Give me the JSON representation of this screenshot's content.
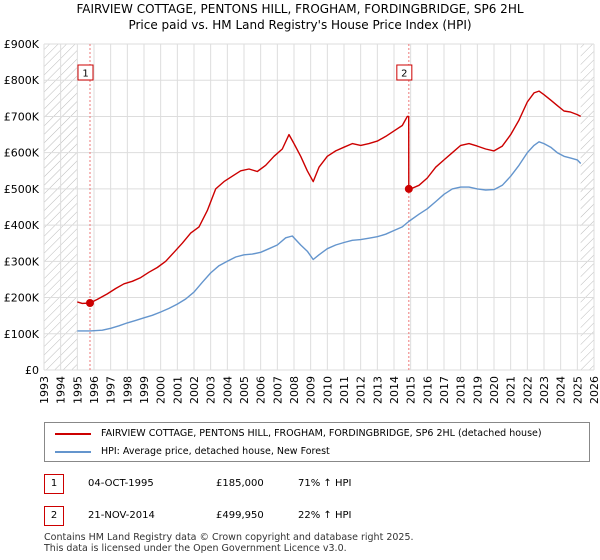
{
  "colors": {
    "property": "#cc0000",
    "hpi": "#6495cd",
    "grid": "#dddddd",
    "hatch": "#bbbbbb",
    "marker_line": "#ee7777"
  },
  "chart_data": {
    "type": "line",
    "title_line1": "FAIRVIEW COTTAGE, PENTONS HILL, FROGHAM, FORDINGBRIDGE, SP6 2HL",
    "title_line2": "Price paid vs. HM Land Registry's House Price Index (HPI)",
    "xlim": [
      1993,
      2026
    ],
    "ylim": [
      0,
      900000
    ],
    "x_ticks": [
      1993,
      1994,
      1995,
      1996,
      1997,
      1998,
      1999,
      2000,
      2001,
      2002,
      2003,
      2004,
      2005,
      2006,
      2007,
      2008,
      2009,
      2010,
      2011,
      2012,
      2013,
      2014,
      2015,
      2016,
      2017,
      2018,
      2019,
      2020,
      2021,
      2022,
      2023,
      2024,
      2025,
      2026
    ],
    "y_ticks": [
      {
        "value": 0,
        "label": "£0"
      },
      {
        "value": 100000,
        "label": "£100K"
      },
      {
        "value": 200000,
        "label": "£200K"
      },
      {
        "value": 300000,
        "label": "£300K"
      },
      {
        "value": 400000,
        "label": "£400K"
      },
      {
        "value": 500000,
        "label": "£500K"
      },
      {
        "value": 600000,
        "label": "£600K"
      },
      {
        "value": 700000,
        "label": "£700K"
      },
      {
        "value": 800000,
        "label": "£800K"
      },
      {
        "value": 900000,
        "label": "£900K"
      }
    ],
    "hatch_ranges": [
      [
        1993,
        1995.0
      ],
      [
        2025.2,
        2026
      ]
    ],
    "series": [
      {
        "name": "property",
        "x": [
          1995.0,
          1995.3,
          1995.76,
          1996.2,
          1996.8,
          1997.3,
          1997.8,
          1998.3,
          1998.8,
          1999.3,
          1999.8,
          2000.3,
          2000.8,
          2001.3,
          2001.8,
          2002.3,
          2002.8,
          2003.3,
          2003.8,
          2004.3,
          2004.8,
          2005.3,
          2005.8,
          2006.3,
          2006.8,
          2007.3,
          2007.7,
          2008.0,
          2008.4,
          2008.8,
          2009.15,
          2009.5,
          2010.0,
          2010.5,
          2011.0,
          2011.5,
          2012.0,
          2012.5,
          2013.0,
          2013.5,
          2014.0,
          2014.5,
          2014.8,
          2014.88,
          2014.89,
          2015.0,
          2015.5,
          2016.0,
          2016.5,
          2017.0,
          2017.5,
          2018.0,
          2018.5,
          2019.0,
          2019.5,
          2020.0,
          2020.5,
          2021.0,
          2021.5,
          2022.0,
          2022.4,
          2022.7,
          2023.0,
          2023.4,
          2023.8,
          2024.2,
          2024.6,
          2025.0,
          2025.2
        ],
        "values": [
          188000,
          184000,
          185000,
          195000,
          210000,
          225000,
          238000,
          245000,
          255000,
          270000,
          283000,
          300000,
          325000,
          350000,
          378000,
          395000,
          440000,
          500000,
          520000,
          535000,
          550000,
          555000,
          548000,
          565000,
          590000,
          610000,
          650000,
          625000,
          590000,
          550000,
          520000,
          560000,
          590000,
          605000,
          615000,
          625000,
          620000,
          625000,
          632000,
          645000,
          660000,
          675000,
          700000,
          700000,
          499950,
          500000,
          510000,
          530000,
          560000,
          580000,
          600000,
          620000,
          625000,
          618000,
          610000,
          605000,
          618000,
          650000,
          690000,
          740000,
          765000,
          770000,
          760000,
          745000,
          730000,
          715000,
          712000,
          705000,
          700000
        ]
      },
      {
        "name": "hpi",
        "x": [
          1995.0,
          1995.76,
          1996.5,
          1997.0,
          1997.5,
          1998.0,
          1998.5,
          1999.0,
          1999.5,
          2000.0,
          2000.5,
          2001.0,
          2001.5,
          2002.0,
          2002.5,
          2003.0,
          2003.5,
          2004.0,
          2004.5,
          2005.0,
          2005.5,
          2006.0,
          2006.5,
          2007.0,
          2007.5,
          2007.9,
          2008.4,
          2008.8,
          2009.15,
          2009.5,
          2010.0,
          2010.5,
          2011.0,
          2011.5,
          2012.0,
          2012.5,
          2013.0,
          2013.5,
          2014.0,
          2014.5,
          2014.88,
          2015.5,
          2016.0,
          2016.5,
          2017.0,
          2017.5,
          2018.0,
          2018.5,
          2019.0,
          2019.5,
          2020.0,
          2020.5,
          2021.0,
          2021.5,
          2022.0,
          2022.4,
          2022.7,
          2023.0,
          2023.4,
          2023.8,
          2024.2,
          2024.6,
          2025.0,
          2025.2
        ],
        "values": [
          108000,
          108000,
          110000,
          115000,
          122000,
          130000,
          137000,
          144000,
          151000,
          160000,
          170000,
          182000,
          196000,
          215000,
          242000,
          268000,
          288000,
          300000,
          312000,
          318000,
          320000,
          325000,
          335000,
          345000,
          365000,
          370000,
          345000,
          328000,
          305000,
          318000,
          335000,
          345000,
          352000,
          358000,
          360000,
          364000,
          368000,
          375000,
          385000,
          395000,
          410000,
          430000,
          445000,
          465000,
          485000,
          500000,
          505000,
          505000,
          500000,
          497000,
          498000,
          510000,
          535000,
          565000,
          600000,
          620000,
          630000,
          625000,
          615000,
          600000,
          590000,
          585000,
          580000,
          570000
        ]
      }
    ],
    "transactions": [
      {
        "badge": "1",
        "date": "04-OCT-1995",
        "year": 1995.76,
        "price": 185000,
        "price_label": "£185,000",
        "hpi_label": "71% ↑ HPI"
      },
      {
        "badge": "2",
        "date": "21-NOV-2014",
        "year": 2014.89,
        "price": 499950,
        "price_label": "£499,950",
        "hpi_label": "22% ↑ HPI"
      }
    ],
    "legend": [
      {
        "series": "property",
        "label": "FAIRVIEW COTTAGE, PENTONS HILL, FROGHAM, FORDINGBRIDGE, SP6 2HL (detached house)"
      },
      {
        "series": "hpi",
        "label": "HPI: Average price, detached house, New Forest"
      }
    ]
  },
  "footer": {
    "line1": "Contains HM Land Registry data © Crown copyright and database right 2025.",
    "line2": "This data is licensed under the Open Government Licence v3.0."
  }
}
